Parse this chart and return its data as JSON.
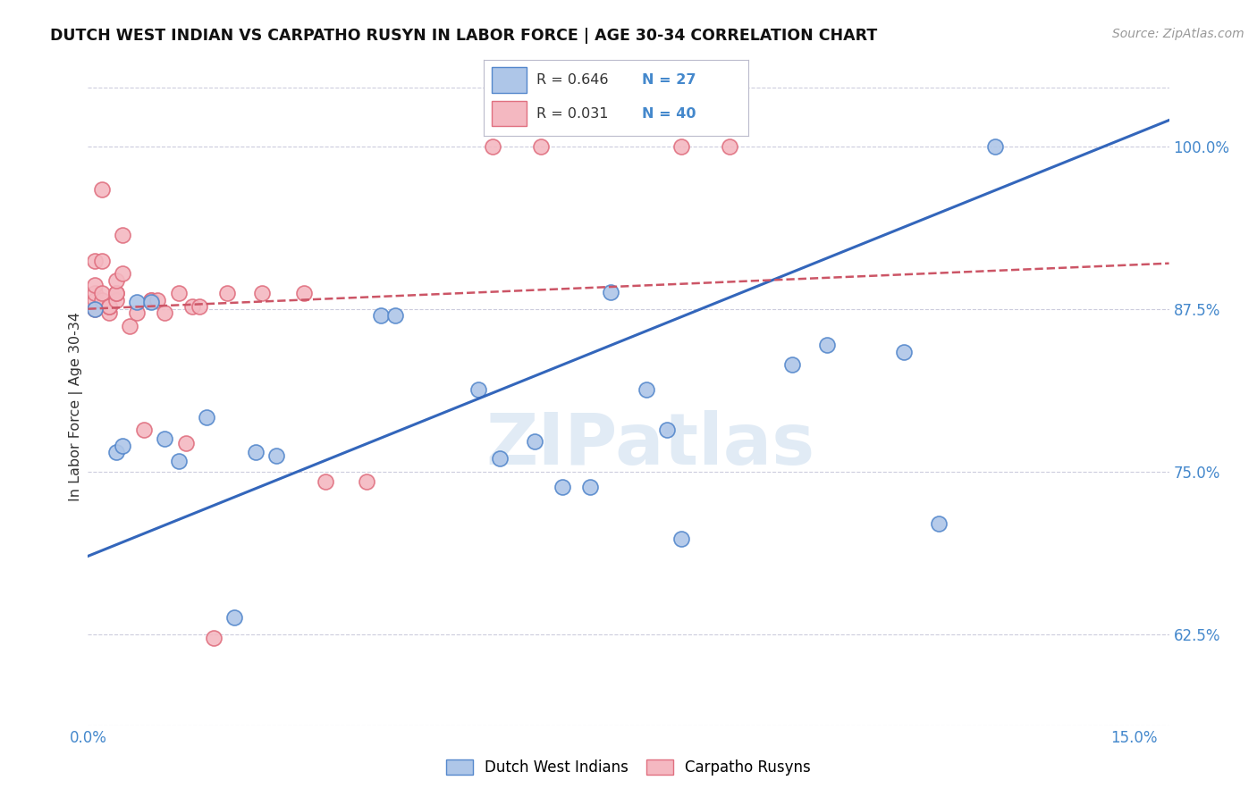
{
  "title": "DUTCH WEST INDIAN VS CARPATHO RUSYN IN LABOR FORCE | AGE 30-34 CORRELATION CHART",
  "source": "Source: ZipAtlas.com",
  "ylabel": "In Labor Force | Age 30-34",
  "xlim": [
    0.0,
    0.155
  ],
  "ylim": [
    0.555,
    1.045
  ],
  "xticks": [
    0.0,
    0.03,
    0.06,
    0.09,
    0.12,
    0.15
  ],
  "xticklabels": [
    "0.0%",
    "",
    "",
    "",
    "",
    "15.0%"
  ],
  "yticks": [
    0.625,
    0.75,
    0.875,
    1.0
  ],
  "yticklabels": [
    "62.5%",
    "75.0%",
    "87.5%",
    "100.0%"
  ],
  "blue_R": 0.646,
  "blue_N": 27,
  "pink_R": 0.031,
  "pink_N": 40,
  "blue_color": "#AEC6E8",
  "pink_color": "#F4B8C1",
  "blue_edge_color": "#5588CC",
  "pink_edge_color": "#E07080",
  "blue_line_color": "#3366BB",
  "pink_line_color": "#CC5566",
  "background_color": "#FFFFFF",
  "grid_color": "#CCCCDD",
  "legend_label_blue": "Dutch West Indians",
  "legend_label_pink": "Carpatho Rusyns",
  "watermark": "ZIPatlas",
  "blue_scatter_x": [
    0.001,
    0.004,
    0.005,
    0.007,
    0.009,
    0.011,
    0.013,
    0.017,
    0.021,
    0.024,
    0.027,
    0.042,
    0.044,
    0.056,
    0.059,
    0.064,
    0.068,
    0.072,
    0.075,
    0.08,
    0.083,
    0.085,
    0.101,
    0.106,
    0.117,
    0.122,
    0.13
  ],
  "blue_scatter_y": [
    0.875,
    0.765,
    0.77,
    0.88,
    0.88,
    0.775,
    0.758,
    0.792,
    0.638,
    0.765,
    0.762,
    0.87,
    0.87,
    0.813,
    0.76,
    0.773,
    0.738,
    0.738,
    0.888,
    0.813,
    0.782,
    0.698,
    0.832,
    0.847,
    0.842,
    0.71,
    1.0
  ],
  "pink_scatter_x": [
    0.001,
    0.001,
    0.001,
    0.001,
    0.001,
    0.002,
    0.002,
    0.002,
    0.002,
    0.003,
    0.003,
    0.003,
    0.003,
    0.004,
    0.004,
    0.004,
    0.004,
    0.005,
    0.005,
    0.006,
    0.007,
    0.008,
    0.009,
    0.009,
    0.01,
    0.011,
    0.013,
    0.014,
    0.015,
    0.016,
    0.018,
    0.02,
    0.025,
    0.031,
    0.034,
    0.04,
    0.058,
    0.065,
    0.085,
    0.092
  ],
  "pink_scatter_y": [
    0.875,
    0.882,
    0.887,
    0.893,
    0.912,
    0.882,
    0.887,
    0.912,
    0.967,
    0.872,
    0.877,
    0.877,
    0.877,
    0.882,
    0.887,
    0.887,
    0.897,
    0.902,
    0.932,
    0.862,
    0.872,
    0.782,
    0.882,
    0.882,
    0.882,
    0.872,
    0.887,
    0.772,
    0.877,
    0.877,
    0.622,
    0.887,
    0.887,
    0.887,
    0.742,
    0.742,
    1.0,
    1.0,
    1.0,
    1.0
  ],
  "blue_trendline_x": [
    0.0,
    0.155
  ],
  "blue_trendline_y": [
    0.685,
    1.02
  ],
  "pink_trendline_x": [
    0.0,
    0.155
  ],
  "pink_trendline_y": [
    0.875,
    0.91
  ]
}
